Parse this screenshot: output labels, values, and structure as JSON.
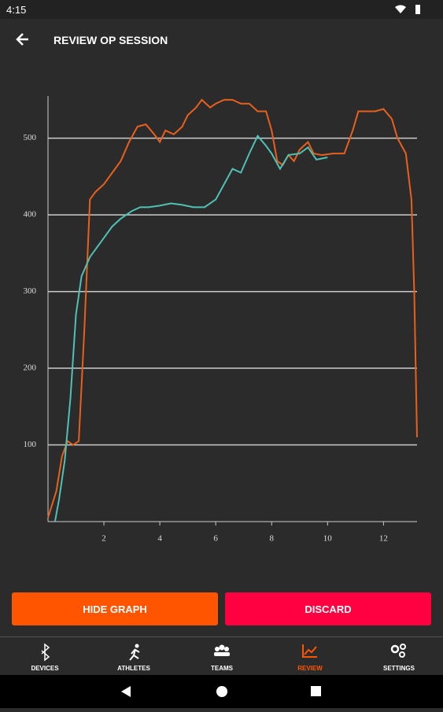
{
  "status_bar": {
    "time": "4:15"
  },
  "header": {
    "title": "REVIEW OP SESSION"
  },
  "chart_data": {
    "type": "line",
    "grid": true,
    "xlim": [
      0,
      13.2
    ],
    "xticks": [
      2,
      4,
      6,
      8,
      10,
      12
    ],
    "ylim": [
      0,
      555
    ],
    "yticks": [
      100,
      200,
      300,
      400,
      500
    ],
    "series": [
      {
        "color": "#e8601c",
        "x": [
          0,
          0.3,
          0.5,
          0.7,
          0.9,
          1.1,
          1.3,
          1.5,
          1.7,
          2.0,
          2.3,
          2.6,
          2.9,
          3.2,
          3.5,
          3.8,
          4.0,
          4.2,
          4.5,
          4.8,
          5.0,
          5.3,
          5.5,
          5.8,
          6.0,
          6.3,
          6.6,
          6.9,
          7.2,
          7.5,
          7.8,
          8.0,
          8.2,
          8.4,
          8.6,
          8.8,
          9.0,
          9.3,
          9.5,
          9.8,
          10.2,
          10.6,
          10.9,
          11.1,
          11.4,
          11.7,
          12.0,
          12.3,
          12.5,
          12.8,
          13.0,
          13.1,
          13.2
        ],
        "values": [
          5,
          40,
          85,
          105,
          100,
          105,
          250,
          420,
          430,
          440,
          455,
          470,
          495,
          515,
          518,
          505,
          495,
          510,
          505,
          515,
          530,
          540,
          550,
          540,
          545,
          550,
          550,
          545,
          545,
          535,
          535,
          510,
          470,
          465,
          478,
          470,
          485,
          495,
          480,
          478,
          480,
          480,
          510,
          535,
          535,
          535,
          538,
          525,
          500,
          480,
          420,
          300,
          110
        ]
      },
      {
        "color": "#4fc1b5",
        "x": [
          0.25,
          0.4,
          0.6,
          0.8,
          1.0,
          1.2,
          1.5,
          1.8,
          2.0,
          2.3,
          2.6,
          3.0,
          3.3,
          3.6,
          4.0,
          4.4,
          4.8,
          5.2,
          5.6,
          6.0,
          6.3,
          6.6,
          6.9,
          7.2,
          7.5,
          7.8,
          8.0,
          8.3,
          8.6,
          9.0,
          9.3,
          9.6,
          10.0
        ],
        "values": [
          0,
          30,
          80,
          160,
          270,
          320,
          345,
          360,
          370,
          385,
          395,
          405,
          410,
          410,
          412,
          415,
          413,
          410,
          410,
          420,
          440,
          460,
          455,
          480,
          503,
          490,
          480,
          460,
          478,
          480,
          488,
          472,
          475
        ]
      }
    ]
  },
  "buttons": {
    "hide_graph": "HIDE GRAPH",
    "discard": "DISCARD"
  },
  "nav": {
    "items": [
      "DEVICES",
      "ATHLETES",
      "TEAMS",
      "REVIEW",
      "SETTINGS"
    ]
  }
}
